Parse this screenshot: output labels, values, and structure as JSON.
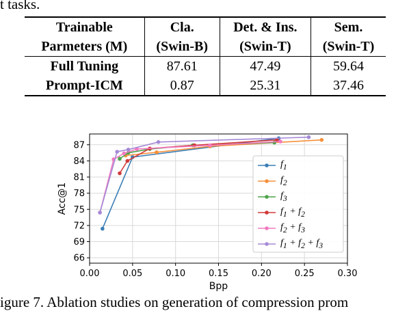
{
  "caption_top": "t tasks.",
  "table": {
    "header": [
      [
        "Trainable",
        "Parmeters (M)"
      ],
      [
        "Cla.",
        "(Swin-B)"
      ],
      [
        "Det. & Ins.",
        "(Swin-T)"
      ],
      [
        "Sem.",
        "(Swin-T)"
      ]
    ],
    "rows": [
      {
        "label": "Full Tuning",
        "values": [
          "87.61",
          "47.49",
          "59.64"
        ]
      },
      {
        "label": "Prompt-ICM",
        "values": [
          "0.87",
          "25.31",
          "37.46"
        ]
      }
    ]
  },
  "chart_data": {
    "type": "line",
    "xlabel": "Bpp",
    "ylabel": "Acc@1",
    "xlim": [
      0.0,
      0.3
    ],
    "ylim": [
      65,
      89
    ],
    "xticks": [
      "0.00",
      "0.05",
      "0.10",
      "0.15",
      "0.20",
      "0.25",
      "0.30"
    ],
    "yticks": [
      "66",
      "69",
      "72",
      "75",
      "78",
      "81",
      "84",
      "87"
    ],
    "grid": true,
    "legend_position": "right-center",
    "series": [
      {
        "name": "f1",
        "legend_html": "f<sub>1</sub>",
        "color": "#3b7eb5",
        "x": [
          0.015,
          0.05,
          0.22
        ],
        "y": [
          71.4,
          84.7,
          88.2
        ]
      },
      {
        "name": "f2",
        "legend_html": "f<sub>2</sub>",
        "color": "#f5903a",
        "x": [
          0.042,
          0.078,
          0.14,
          0.27
        ],
        "y": [
          85.0,
          85.6,
          86.7,
          87.9
        ]
      },
      {
        "name": "f3",
        "legend_html": "f<sub>3</sub>",
        "color": "#4ea34a",
        "x": [
          0.035,
          0.045,
          0.07,
          0.12,
          0.215
        ],
        "y": [
          84.4,
          85.5,
          86.2,
          86.9,
          87.4
        ]
      },
      {
        "name": "f1 + f2",
        "legend_html": "f<sub>1</sub> + f<sub>2</sub>",
        "color": "#d13a3a",
        "x": [
          0.035,
          0.044,
          0.07,
          0.122,
          0.218
        ],
        "y": [
          81.7,
          84.0,
          86.3,
          86.9,
          87.9
        ]
      },
      {
        "name": "f2 + f3",
        "legend_html": "f<sub>2</sub> + f<sub>3</sub>",
        "color": "#f27ac0",
        "x": [
          0.012,
          0.028,
          0.04,
          0.055,
          0.14,
          0.222
        ],
        "y": [
          74.4,
          84.3,
          85.4,
          86.2,
          86.9,
          87.6
        ]
      },
      {
        "name": "f1 + f2 + f3",
        "legend_html": "f<sub>1</sub> + f<sub>2</sub> + f<sub>3</sub>",
        "color": "#a58ad6",
        "x": [
          0.012,
          0.032,
          0.045,
          0.08,
          0.255
        ],
        "y": [
          74.4,
          85.7,
          86.1,
          87.5,
          88.4
        ]
      }
    ]
  },
  "caption_bottom": "igure 7.  Ablation studies on generation of compression prom"
}
